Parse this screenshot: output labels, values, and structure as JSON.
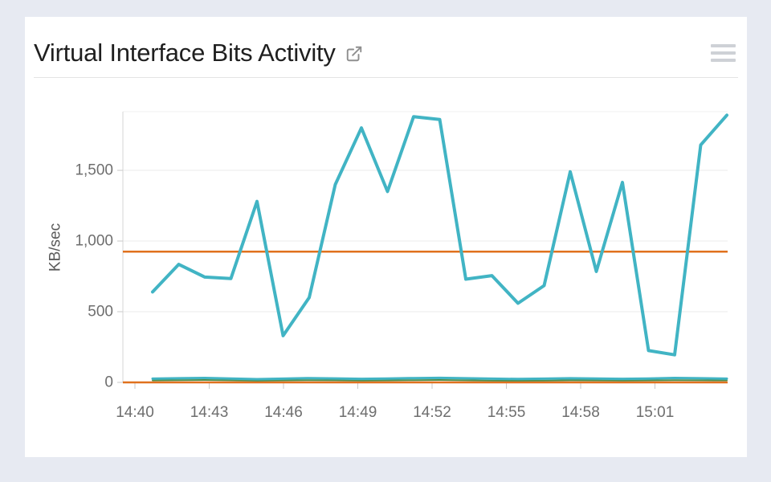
{
  "window": {
    "background": "#e7eaf2",
    "card_background": "#ffffff"
  },
  "header": {
    "title": "Virtual Interface Bits Activity",
    "popout_icon": "external-link-icon",
    "popout_color": "#8f8f8f",
    "menu_icon": "hamburger-menu-icon",
    "menu_color": "#ced1d6"
  },
  "chart_data": {
    "type": "line",
    "title": "Virtual Interface Bits Activity",
    "xlabel": "",
    "ylabel": "KB/sec",
    "x_tick_labels": [
      "14:40",
      "14:43",
      "14:46",
      "14:49",
      "14:52",
      "14:55",
      "14:58",
      "15:01"
    ],
    "y_ticks": [
      {
        "value": 0,
        "label": "0"
      },
      {
        "value": 500,
        "label": "500"
      },
      {
        "value": 1000,
        "label": "1,000"
      },
      {
        "value": 1500,
        "label": "1,500"
      }
    ],
    "y_gridlines": [
      500,
      1000,
      1500
    ],
    "ylim": [
      0,
      1915
    ],
    "grid": true,
    "legend": false,
    "x": [
      "14:41",
      "14:42",
      "14:43",
      "14:44",
      "14:45",
      "14:46",
      "14:47",
      "14:48",
      "14:49",
      "14:50",
      "14:51",
      "14:52",
      "14:53",
      "14:54",
      "14:55",
      "14:56",
      "14:57",
      "14:58",
      "14:59",
      "15:00",
      "15:01",
      "15:02",
      "15:03"
    ],
    "series": [
      {
        "name": "virtual-interface-in-kbsec",
        "color": "#41b4c4",
        "width": 4,
        "values": [
          640,
          835,
          745,
          735,
          1280,
          330,
          600,
          1400,
          1800,
          1350,
          1880,
          1860,
          730,
          755,
          560,
          685,
          1490,
          785,
          1415,
          225,
          195,
          1680,
          1890
        ]
      },
      {
        "name": "virtual-interface-out-kbsec",
        "color": "#41b4c4",
        "width": 3,
        "values": [
          26,
          29,
          31,
          27,
          23,
          26,
          30,
          28,
          25,
          27,
          30,
          32,
          29,
          26,
          24,
          26,
          29,
          27,
          25,
          27,
          31,
          29,
          26
        ]
      },
      {
        "name": "virtual-interface-green-kbsec",
        "color": "#4e8c48",
        "width": 2,
        "values": [
          14,
          16,
          17,
          15,
          12,
          14,
          16,
          15,
          13,
          14,
          16,
          17,
          15,
          13,
          12,
          13,
          15,
          14,
          13,
          14,
          16,
          15,
          14
        ]
      },
      {
        "name": "constant-upper-orange",
        "color": "#e0711e",
        "width": 2.5,
        "constant": 925
      },
      {
        "name": "constant-zero-orange",
        "color": "#e0711e",
        "width": 2.5,
        "constant": 0
      }
    ],
    "colors": {
      "grid": "#ebebeb",
      "top_border": "#f0f0f0",
      "axis": "#d6d6d6",
      "tick": "#c9c9c9",
      "tick_label": "#6e6e6e",
      "axis_title": "#5a5a5a"
    }
  }
}
